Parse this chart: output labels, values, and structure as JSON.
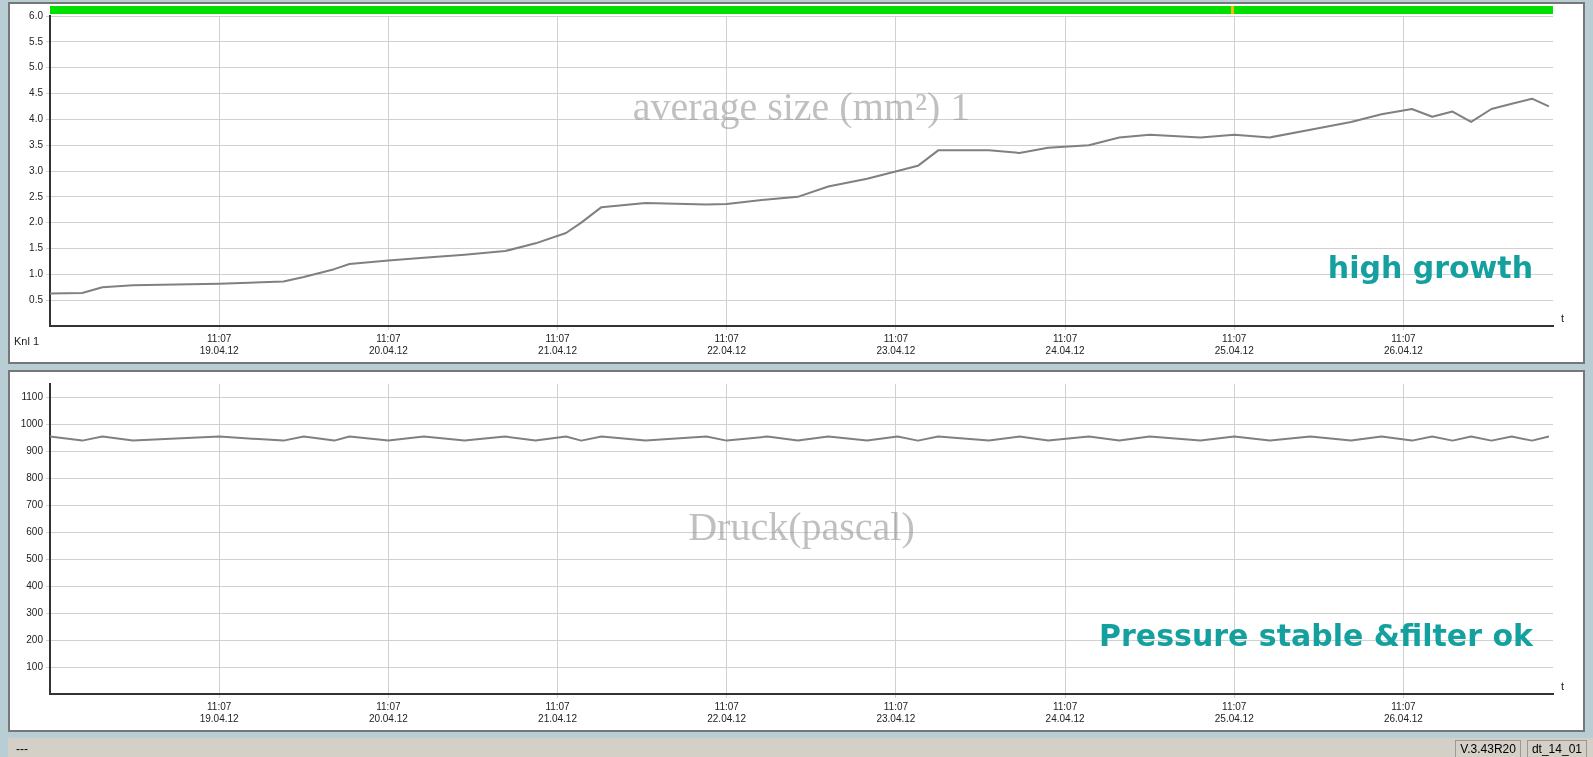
{
  "chart_data": [
    {
      "type": "line",
      "ylabel": "average size (mm²) 1",
      "xlabel": "t",
      "annotations": [
        "high growth",
        "Knl 1"
      ],
      "xlim": [
        "--04-18T11:07",
        "--04-27T08:20"
      ],
      "xticks": [
        {
          "value": "--04-19T11:07",
          "label": "11:07\n19.04.12"
        },
        {
          "value": "--04-20T11:07",
          "label": "11:07\n20.04.12"
        },
        {
          "value": "--04-21T11:07",
          "label": "11:07\n21.04.12"
        },
        {
          "value": "--04-22T11:07",
          "label": "11:07\n22.04.12"
        },
        {
          "value": "--04-23T11:07",
          "label": "11:07\n23.04.12"
        },
        {
          "value": "--04-24T11:07",
          "label": "11:07\n24.04.12"
        },
        {
          "value": "--04-25T11:07",
          "label": "11:07\n25.04.12"
        },
        {
          "value": "--04-26T11:07",
          "label": "11:07\n26.04.12"
        }
      ],
      "ylim": [
        0,
        6.0
      ],
      "yticks": [
        0.5,
        {
          "value": 1,
          "label": "1.0"
        },
        1.5,
        {
          "value": 2,
          "label": "2.0"
        },
        2.5,
        {
          "value": 3,
          "label": "3.0"
        },
        3.5,
        {
          "value": 4,
          "label": "4.0"
        },
        4.5,
        {
          "value": 5,
          "label": "5.0"
        },
        5.5,
        {
          "value": 6,
          "label": "6.0"
        }
      ],
      "grid": true,
      "legend": false,
      "marker": "none",
      "line_style": "solid",
      "series": [
        {
          "color": "#808080",
          "x": [
            "--04-18T11:07",
            "--04-18T15:41",
            "--04-18T18:33",
            "--04-18T22:53",
            "--04-19T11:07",
            "--04-19T20:14",
            "--04-19T23:07",
            "--04-20T03:26",
            "--04-20T05:36",
            "--04-20T11:07",
            "--04-20T16:09",
            "--04-20T21:55",
            "--04-21T03:41",
            "--04-21T08:00",
            "--04-21T12:19",
            "--04-21T14:29",
            "--04-21T17:21",
            "--04-21T23:36",
            "--04-22T08:14",
            "--04-22T11:07",
            "--04-22T16:53",
            "--04-22T21:12",
            "--04-23T01:31",
            "--04-23T07:02",
            "--04-23T11:21",
            "--04-23T14:14",
            "--04-23T17:07",
            "--04-24T00:19",
            "--04-24T04:38",
            "--04-24T08:43",
            "--04-24T14:29",
            "--04-24T18:48",
            "--04-24T23:07",
            "--04-25T06:19",
            "--04-25T11:07",
            "--04-25T16:09",
            "--04-25T21:55",
            "--04-26T03:41",
            "--04-26T08:00",
            "--04-26T12:19",
            "--04-26T15:12",
            "--04-26T18:05",
            "--04-26T20:43",
            "--04-26T23:36",
            "--04-27T02:29",
            "--04-27T05:21",
            "--04-27T07:45"
          ],
          "values": [
            0.63,
            0.64,
            0.75,
            0.79,
            0.82,
            0.86,
            0.95,
            1.1,
            1.2,
            1.27,
            1.32,
            1.38,
            1.45,
            1.6,
            1.8,
            2.0,
            2.3,
            2.38,
            2.35,
            2.36,
            2.45,
            2.5,
            2.7,
            2.85,
            3.0,
            3.1,
            3.4,
            3.4,
            3.35,
            3.45,
            3.5,
            3.65,
            3.7,
            3.65,
            3.7,
            3.65,
            3.8,
            3.95,
            4.1,
            4.2,
            4.05,
            4.15,
            3.95,
            4.2,
            4.3,
            4.4,
            4.25
          ]
        }
      ]
    },
    {
      "type": "line",
      "ylabel": "Druck(pascal)",
      "xlabel": "t",
      "annotations": [
        "Pressure stable &filter ok"
      ],
      "xlim": [
        "--04-18T11:07",
        "--04-27T08:20"
      ],
      "xticks": [
        {
          "value": "--04-19T11:07",
          "label": "11:07\n19.04.12"
        },
        {
          "value": "--04-20T11:07",
          "label": "11:07\n20.04.12"
        },
        {
          "value": "--04-21T11:07",
          "label": "11:07\n21.04.12"
        },
        {
          "value": "--04-22T11:07",
          "label": "11:07\n22.04.12"
        },
        {
          "value": "--04-23T11:07",
          "label": "11:07\n23.04.12"
        },
        {
          "value": "--04-24T11:07",
          "label": "11:07\n24.04.12"
        },
        {
          "value": "--04-25T11:07",
          "label": "11:07\n25.04.12"
        },
        {
          "value": "--04-26T11:07",
          "label": "11:07\n26.04.12"
        }
      ],
      "ylim": [
        0,
        1150
      ],
      "yticks": [
        100,
        200,
        300,
        400,
        500,
        600,
        700,
        800,
        900,
        1000,
        1100
      ],
      "grid": true,
      "legend": false,
      "marker": "none",
      "line_style": "solid",
      "series": [
        {
          "color": "#808080",
          "x": [
            "--04-18T11:07",
            "--04-18T15:41",
            "--04-18T18:33",
            "--04-18T22:53",
            "--04-19T11:07",
            "--04-19T20:14",
            "--04-19T23:07",
            "--04-20T03:26",
            "--04-20T05:36",
            "--04-20T11:07",
            "--04-20T16:09",
            "--04-20T21:55",
            "--04-21T03:41",
            "--04-21T08:00",
            "--04-21T12:19",
            "--04-21T14:29",
            "--04-21T17:21",
            "--04-21T23:36",
            "--04-22T08:14",
            "--04-22T11:07",
            "--04-22T16:53",
            "--04-22T21:12",
            "--04-23T01:31",
            "--04-23T07:02",
            "--04-23T11:21",
            "--04-23T14:14",
            "--04-23T17:07",
            "--04-24T00:19",
            "--04-24T04:38",
            "--04-24T08:43",
            "--04-24T14:29",
            "--04-24T18:48",
            "--04-24T23:07",
            "--04-25T06:19",
            "--04-25T11:07",
            "--04-25T16:09",
            "--04-25T21:55",
            "--04-26T03:41",
            "--04-26T08:00",
            "--04-26T12:19",
            "--04-26T15:12",
            "--04-26T18:05",
            "--04-26T20:43",
            "--04-26T23:36",
            "--04-27T02:29",
            "--04-27T05:21",
            "--04-27T07:45"
          ],
          "values": [
            955,
            940,
            955,
            940,
            955,
            940,
            955,
            940,
            955,
            940,
            955,
            940,
            955,
            940,
            955,
            940,
            955,
            940,
            955,
            940,
            955,
            940,
            955,
            940,
            955,
            940,
            955,
            940,
            955,
            940,
            955,
            940,
            955,
            940,
            955,
            940,
            955,
            940,
            955,
            940,
            955,
            940,
            955,
            940,
            955,
            940,
            955
          ]
        }
      ]
    },
    {
      "type": "other",
      "annotations": [
        "---",
        "V.3.43R20",
        "dt_14_01"
      ]
    }
  ]
}
